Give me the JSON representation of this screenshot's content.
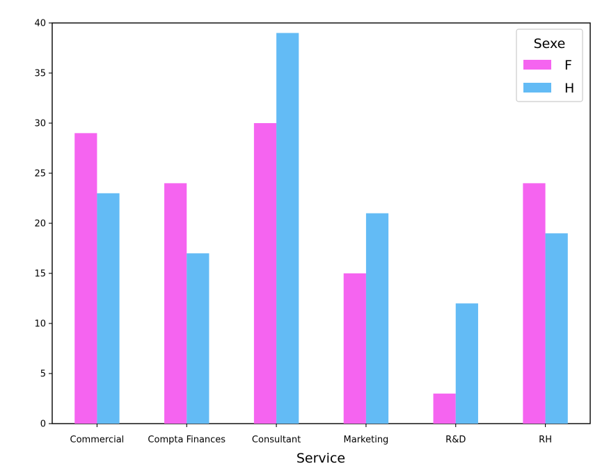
{
  "chart_data": {
    "type": "bar",
    "title": "",
    "xlabel": "Service",
    "ylabel": "",
    "categories": [
      "Commercial",
      "Compta Finances",
      "Consultant",
      "Marketing",
      "R&D",
      "RH"
    ],
    "series": [
      {
        "name": "F",
        "values": [
          29,
          24,
          30,
          15,
          3,
          24
        ],
        "color": "#f564f0"
      },
      {
        "name": "H",
        "values": [
          23,
          17,
          39,
          21,
          12,
          19
        ],
        "color": "#63bbf5"
      }
    ],
    "ylim": [
      0,
      40
    ],
    "yticks": [
      0,
      5,
      10,
      15,
      20,
      25,
      30,
      35,
      40
    ],
    "legend": {
      "title": "Sexe",
      "position": "top-right"
    },
    "grid": false
  }
}
